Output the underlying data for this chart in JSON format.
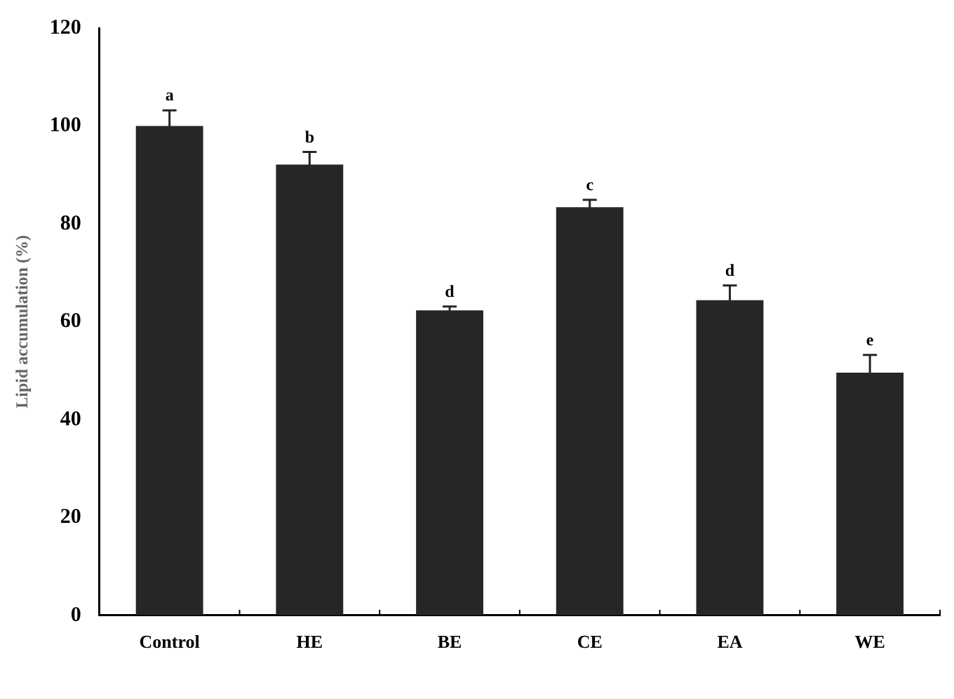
{
  "chart_data": {
    "type": "bar",
    "ylabel": "Lipid accumulation (%)",
    "categories": [
      "Control",
      "HE",
      "BE",
      "CE",
      "EA",
      "WE"
    ],
    "values": [
      100,
      92.1,
      62.3,
      83.4,
      64.4,
      49.6
    ],
    "errors": [
      3.2,
      2.6,
      0.8,
      1.5,
      3,
      3.6
    ],
    "color": "#262626",
    "ylim": [
      0,
      120
    ],
    "yticks": [
      0,
      20,
      40,
      60,
      80,
      100,
      120
    ],
    "grid": false,
    "legend": false,
    "annotations": [
      {
        "text": "a",
        "x": "Control",
        "y": 103.2
      },
      {
        "text": "b",
        "x": "HE",
        "y": 94.7
      },
      {
        "text": "d",
        "x": "BE",
        "y": 63.1
      },
      {
        "text": "c",
        "x": "CE",
        "y": 84.9
      },
      {
        "text": "d",
        "x": "EA",
        "y": 67.4
      },
      {
        "text": "e",
        "x": "WE",
        "y": 53.2
      }
    ]
  }
}
